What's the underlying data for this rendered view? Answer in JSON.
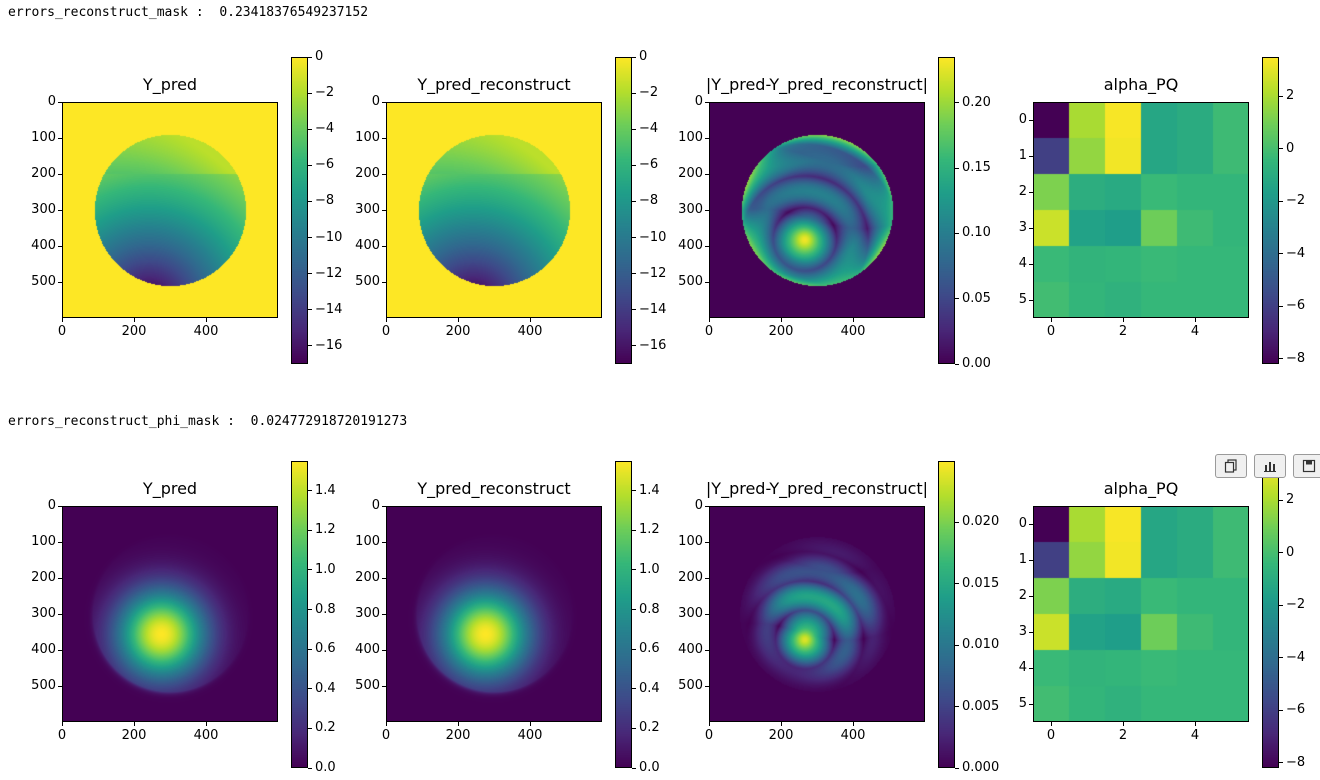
{
  "outputs": [
    {
      "error_label": "errors_reconstruct_mask :  0.23418376549237152"
    },
    {
      "error_label": "errors_reconstruct_phi_mask :  0.024772918720191273"
    }
  ],
  "toolbar": {
    "buttons": [
      "copy-icon",
      "chart-icon",
      "save-icon"
    ]
  },
  "colors": {
    "viridis": [
      "#440154",
      "#3b528b",
      "#21918c",
      "#5ec962",
      "#fde725"
    ]
  },
  "chart_data": [
    {
      "type": "heatmap",
      "title": "Y_pred",
      "row": 0,
      "kind": "mask_phase",
      "xticks": [
        "0",
        "200",
        "400"
      ],
      "yticks": [
        "0",
        "100",
        "200",
        "300",
        "400",
        "500"
      ],
      "xlim": [
        0,
        600
      ],
      "ylim": [
        600,
        0
      ],
      "colorbar": {
        "min": -17,
        "max": 0,
        "ticks": [
          "0",
          "−2",
          "−4",
          "−6",
          "−8",
          "−10",
          "−12",
          "−14",
          "−16"
        ]
      }
    },
    {
      "type": "heatmap",
      "title": "Y_pred_reconstruct",
      "row": 0,
      "kind": "mask_phase",
      "xticks": [
        "0",
        "200",
        "400"
      ],
      "yticks": [
        "0",
        "100",
        "200",
        "300",
        "400",
        "500"
      ],
      "xlim": [
        0,
        600
      ],
      "ylim": [
        600,
        0
      ],
      "colorbar": {
        "min": -17,
        "max": 0,
        "ticks": [
          "0",
          "−2",
          "−4",
          "−6",
          "−8",
          "−10",
          "−12",
          "−14",
          "−16"
        ]
      }
    },
    {
      "type": "heatmap",
      "title": "|Y_pred-Y_pred_reconstruct|",
      "row": 0,
      "kind": "error_mask",
      "xticks": [
        "0",
        "200",
        "400"
      ],
      "yticks": [
        "0",
        "100",
        "200",
        "300",
        "400",
        "500"
      ],
      "xlim": [
        0,
        600
      ],
      "ylim": [
        600,
        0
      ],
      "colorbar": {
        "min": 0,
        "max": 0.235,
        "ticks": [
          "0.20",
          "0.15",
          "0.10",
          "0.05",
          "0.00"
        ]
      }
    },
    {
      "type": "heatmap",
      "title": "alpha_PQ",
      "row": 0,
      "kind": "matrix",
      "xticks": [
        "0",
        "2",
        "4"
      ],
      "yticks": [
        "0",
        "1",
        "2",
        "3",
        "4",
        "5"
      ],
      "values": [
        [
          -8.2,
          2.0,
          3.4,
          -1.3,
          -1.0,
          -0.2
        ],
        [
          -6.0,
          1.6,
          3.3,
          -1.3,
          -1.0,
          -0.2
        ],
        [
          1.2,
          -0.9,
          -1.1,
          -0.3,
          -0.5,
          -0.5
        ],
        [
          2.6,
          -1.5,
          -1.7,
          0.9,
          -0.2,
          -0.5
        ],
        [
          -0.3,
          -0.6,
          -0.5,
          -0.3,
          -0.4,
          -0.4
        ],
        [
          -0.1,
          -0.5,
          -0.7,
          -0.4,
          -0.4,
          -0.4
        ]
      ],
      "colorbar": {
        "min": -8.2,
        "max": 3.5,
        "ticks": [
          "2",
          "0",
          "−2",
          "−4",
          "−6",
          "−8"
        ]
      }
    },
    {
      "type": "heatmap",
      "title": "Y_pred",
      "row": 1,
      "kind": "gauss",
      "xticks": [
        "0",
        "200",
        "400"
      ],
      "yticks": [
        "0",
        "100",
        "200",
        "300",
        "400",
        "500"
      ],
      "xlim": [
        0,
        600
      ],
      "ylim": [
        600,
        0
      ],
      "colorbar": {
        "min": 0,
        "max": 1.55,
        "ticks": [
          "1.4",
          "1.2",
          "1.0",
          "0.8",
          "0.6",
          "0.4",
          "0.2",
          "0.0"
        ]
      }
    },
    {
      "type": "heatmap",
      "title": "Y_pred_reconstruct",
      "row": 1,
      "kind": "gauss",
      "xticks": [
        "0",
        "200",
        "400"
      ],
      "yticks": [
        "0",
        "100",
        "200",
        "300",
        "400",
        "500"
      ],
      "xlim": [
        0,
        600
      ],
      "ylim": [
        600,
        0
      ],
      "colorbar": {
        "min": 0,
        "max": 1.55,
        "ticks": [
          "1.4",
          "1.2",
          "1.0",
          "0.8",
          "0.6",
          "0.4",
          "0.2",
          "0.0"
        ]
      }
    },
    {
      "type": "heatmap",
      "title": "|Y_pred-Y_pred_reconstruct|",
      "row": 1,
      "kind": "error_gauss",
      "xticks": [
        "0",
        "200",
        "400"
      ],
      "yticks": [
        "0",
        "100",
        "200",
        "300",
        "400",
        "500"
      ],
      "xlim": [
        0,
        600
      ],
      "ylim": [
        600,
        0
      ],
      "colorbar": {
        "min": 0,
        "max": 0.025,
        "ticks": [
          "0.020",
          "0.015",
          "0.010",
          "0.005",
          "0.000"
        ]
      }
    },
    {
      "type": "heatmap",
      "title": "alpha_PQ",
      "row": 1,
      "kind": "matrix",
      "xticks": [
        "0",
        "2",
        "4"
      ],
      "yticks": [
        "0",
        "1",
        "2",
        "3",
        "4",
        "5"
      ],
      "values": [
        [
          -8.2,
          2.0,
          3.4,
          -1.3,
          -1.0,
          -0.2
        ],
        [
          -6.0,
          1.6,
          3.3,
          -1.3,
          -1.0,
          -0.2
        ],
        [
          1.2,
          -0.9,
          -1.1,
          -0.3,
          -0.5,
          -0.5
        ],
        [
          2.6,
          -1.5,
          -1.7,
          0.9,
          -0.2,
          -0.5
        ],
        [
          -0.3,
          -0.6,
          -0.5,
          -0.3,
          -0.4,
          -0.4
        ],
        [
          -0.1,
          -0.5,
          -0.7,
          -0.4,
          -0.4,
          -0.4
        ]
      ],
      "colorbar": {
        "min": -8.2,
        "max": 3.5,
        "ticks": [
          "2",
          "0",
          "−2",
          "−4",
          "−6",
          "−8"
        ]
      }
    }
  ]
}
